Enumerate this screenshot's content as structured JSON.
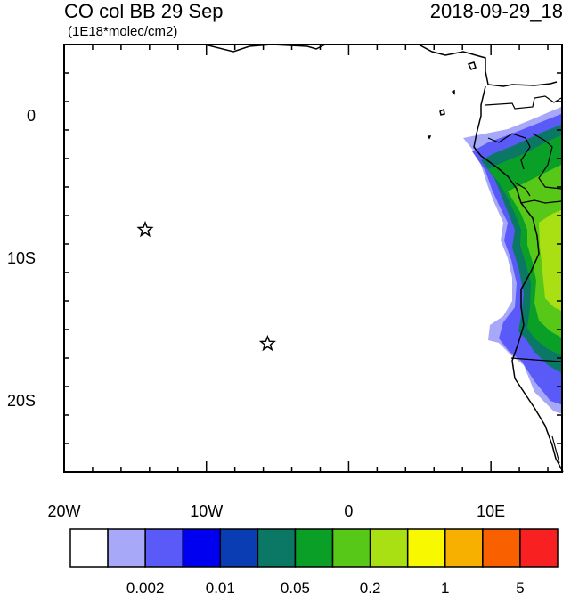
{
  "title": "CO col BB 29 Sep",
  "units": "(1E18*molec/cm2)",
  "timestamp": "2018-09-29_18",
  "lon_ticks": [
    {
      "value": -20,
      "label": "20W"
    },
    {
      "value": -10,
      "label": "10W"
    },
    {
      "value": 0,
      "label": "0"
    },
    {
      "value": 10,
      "label": "10E"
    }
  ],
  "lat_ticks": [
    {
      "value": 0,
      "label": "0"
    },
    {
      "value": -10,
      "label": "10S"
    },
    {
      "value": -20,
      "label": "20S"
    }
  ],
  "extent": {
    "lon": [
      -20,
      15
    ],
    "lat": [
      -25,
      5
    ]
  },
  "markers": [
    {
      "name": "star-marker-1",
      "lon": -14.3,
      "lat": -8.0
    },
    {
      "name": "star-marker-2",
      "lon": -5.7,
      "lat": -16.0
    }
  ],
  "colorbar": {
    "colors": [
      "#ffffff",
      "#a8a8f8",
      "#5a5af8",
      "#0000f0",
      "#0a3cb4",
      "#0a7864",
      "#0aa028",
      "#58c818",
      "#a8e014",
      "#f8f800",
      "#f8b000",
      "#f86000",
      "#f82020"
    ],
    "labels": [
      {
        "after_box": 2,
        "text": "0.002"
      },
      {
        "after_box": 4,
        "text": "0.01"
      },
      {
        "after_box": 6,
        "text": "0.05"
      },
      {
        "after_box": 8,
        "text": "0.2"
      },
      {
        "after_box": 10,
        "text": "1"
      },
      {
        "after_box": 12,
        "text": "5"
      }
    ]
  }
}
